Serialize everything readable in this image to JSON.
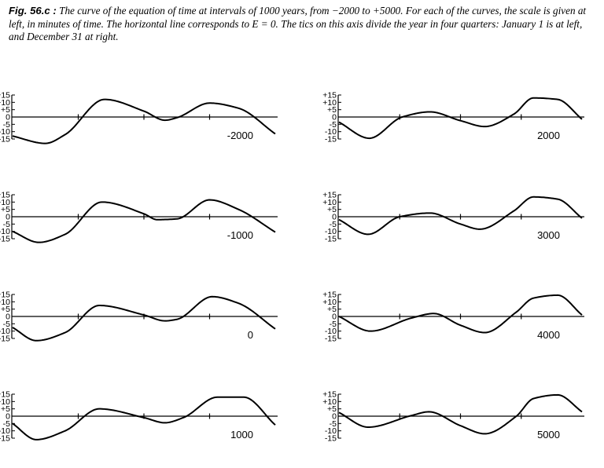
{
  "caption": {
    "label": "Fig. 56.c :",
    "text": " The curve of the equation of time at intervals of 1000 years, from −2000 to +5000. For each of the curves, the scale is given at left, in minutes of time. The horizontal line corresponds to E = 0. The tics on this axis divide the year in four quarters: January 1 is at left, and December 31 at right."
  },
  "chart_data": [
    {
      "type": "line",
      "title": "-2000",
      "ylim": [
        -15,
        15
      ],
      "yticks": [
        "+15",
        "+10",
        "+5",
        "0",
        "-5",
        "-10",
        "-15"
      ],
      "xlim": [
        0,
        1
      ],
      "series": [
        {
          "x": [
            0,
            0.125,
            0.2,
            0.35,
            0.5,
            0.58,
            0.625,
            0.75,
            0.86,
            1
          ],
          "y": [
            -13,
            -18,
            -12,
            12,
            4,
            -2.2,
            -0.5,
            9.5,
            6,
            -11.5
          ]
        }
      ]
    },
    {
      "type": "line",
      "title": "2000",
      "ylim": [
        -15,
        15
      ],
      "yticks": [
        "+15",
        "+10",
        "+5",
        "0",
        "-5",
        "-10",
        "-15"
      ],
      "xlim": [
        0,
        1
      ],
      "series": [
        {
          "x": [
            0,
            0.125,
            0.26,
            0.375,
            0.5,
            0.6,
            0.72,
            0.8,
            0.9,
            1
          ],
          "y": [
            -3.5,
            -14.5,
            0,
            3.5,
            -2.5,
            -6.5,
            2,
            13,
            12,
            -1.5
          ]
        }
      ]
    },
    {
      "type": "line",
      "title": "-1000",
      "ylim": [
        -15,
        15
      ],
      "yticks": [
        "+15",
        "+10",
        "+5",
        "0",
        "-5",
        "-10",
        "-15"
      ],
      "xlim": [
        0,
        1
      ],
      "series": [
        {
          "x": [
            0,
            0.1,
            0.2,
            0.34,
            0.5,
            0.55,
            0.625,
            0.75,
            0.86,
            1
          ],
          "y": [
            -10,
            -17.5,
            -12,
            10,
            2,
            -2,
            -1.5,
            11.5,
            5,
            -10.5
          ]
        }
      ]
    },
    {
      "type": "line",
      "title": "3000",
      "ylim": [
        -15,
        15
      ],
      "yticks": [
        "+15",
        "+10",
        "+5",
        "0",
        "-5",
        "-10",
        "-15"
      ],
      "xlim": [
        0,
        1
      ],
      "series": [
        {
          "x": [
            0,
            0.12,
            0.25,
            0.375,
            0.5,
            0.58,
            0.72,
            0.8,
            0.9,
            1
          ],
          "y": [
            -2,
            -12,
            0,
            2.5,
            -5,
            -8.5,
            4,
            13.5,
            12,
            -1
          ]
        }
      ]
    },
    {
      "type": "line",
      "title": "0",
      "ylim": [
        -15,
        15
      ],
      "yticks": [
        "+15",
        "+10",
        "+5",
        "0",
        "-5",
        "-10",
        "-15"
      ],
      "xlim": [
        0,
        1
      ],
      "series": [
        {
          "x": [
            0,
            0.09,
            0.2,
            0.33,
            0.5,
            0.58,
            0.625,
            0.76,
            0.86,
            1
          ],
          "y": [
            -7.5,
            -16.5,
            -11,
            7.5,
            1,
            -3,
            -2,
            13.5,
            9,
            -8.5
          ]
        }
      ]
    },
    {
      "type": "line",
      "title": "4000",
      "ylim": [
        -15,
        15
      ],
      "yticks": [
        "+15",
        "+10",
        "+5",
        "0",
        "-5",
        "-10",
        "-15"
      ],
      "xlim": [
        0,
        1
      ],
      "series": [
        {
          "x": [
            0,
            0.13,
            0.3,
            0.39,
            0.5,
            0.6,
            0.73,
            0.8,
            0.9,
            1
          ],
          "y": [
            0,
            -10,
            -1,
            2,
            -6,
            -11,
            3,
            12.5,
            14.5,
            1
          ]
        }
      ]
    },
    {
      "type": "line",
      "title": "1000",
      "ylim": [
        -15,
        15
      ],
      "yticks": [
        "+15",
        "+10",
        "+5",
        "0",
        "-5",
        "-10",
        "-15"
      ],
      "xlim": [
        0,
        1
      ],
      "series": [
        {
          "x": [
            0,
            0.09,
            0.2,
            0.33,
            0.5,
            0.58,
            0.65,
            0.78,
            0.88,
            1
          ],
          "y": [
            -5,
            -16,
            -10,
            5,
            -1,
            -4.5,
            -1,
            13,
            13,
            -6
          ]
        }
      ]
    },
    {
      "type": "line",
      "title": "5000",
      "ylim": [
        -15,
        15
      ],
      "yticks": [
        "+15",
        "+10",
        "+5",
        "0",
        "-5",
        "-10",
        "-15"
      ],
      "xlim": [
        0,
        1
      ],
      "series": [
        {
          "x": [
            0,
            0.12,
            0.3,
            0.37,
            0.5,
            0.6,
            0.73,
            0.8,
            0.9,
            1
          ],
          "y": [
            2.5,
            -7.5,
            0.5,
            3,
            -6.5,
            -12,
            0,
            12,
            14.5,
            3
          ]
        }
      ]
    }
  ]
}
